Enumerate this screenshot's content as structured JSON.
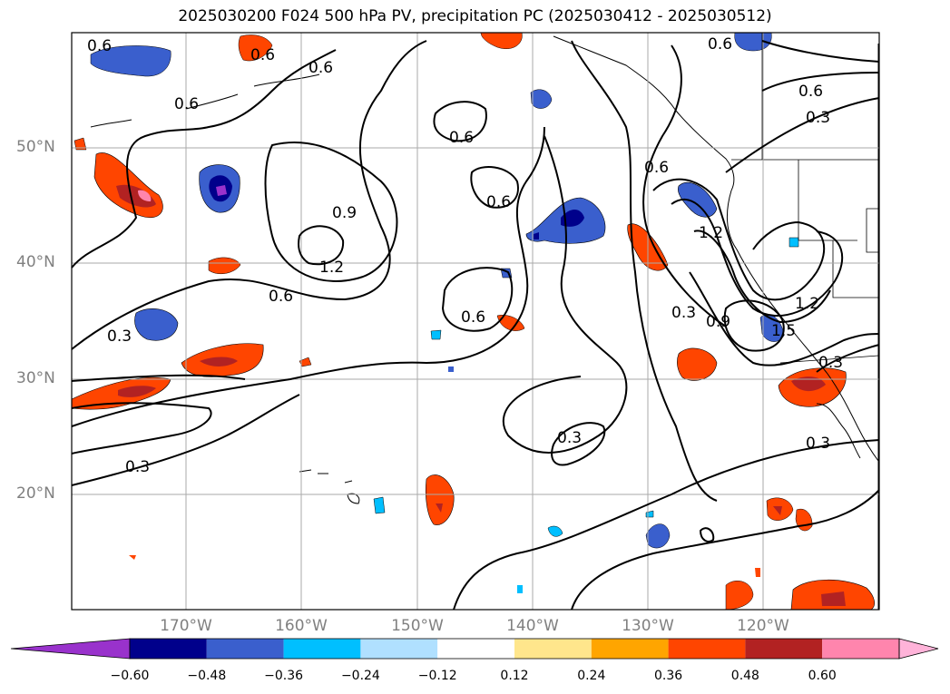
{
  "title": "2025030200 F024 500 hPa PV, precipitation PC (2025030412 - 2025030512)",
  "lat_labels": [
    "50°N",
    "40°N",
    "30°N",
    "20°N"
  ],
  "lon_labels": [
    "170°W",
    "160°W",
    "150°W",
    "140°W",
    "130°W",
    "120°W"
  ],
  "contour_labels": [
    "0.6",
    "0.6",
    "0.6",
    "0.6",
    "0.6",
    "0.6",
    "0.6",
    "0.6",
    "0.9",
    "1.2",
    "0.6",
    "0.6",
    "0.3",
    "0.3",
    "0.3",
    "0.3",
    "0.9",
    "1.2",
    "1.5",
    "1.2",
    "0.3",
    "0.3",
    "0.6",
    "0.3"
  ],
  "colorbar": {
    "ticks": [
      "−0.60",
      "−0.48",
      "−0.36",
      "−0.24",
      "−0.12",
      "0.12",
      "0.24",
      "0.36",
      "0.48",
      "0.60"
    ],
    "colors": [
      "#9932cc",
      "#00008b",
      "#3a5fcd",
      "#00bfff",
      "#b0e0ff",
      "#ffffff",
      "#ffe68c",
      "#ffa500",
      "#ff4500",
      "#b22222",
      "#ff85ad",
      "#ffb3d9"
    ]
  }
}
